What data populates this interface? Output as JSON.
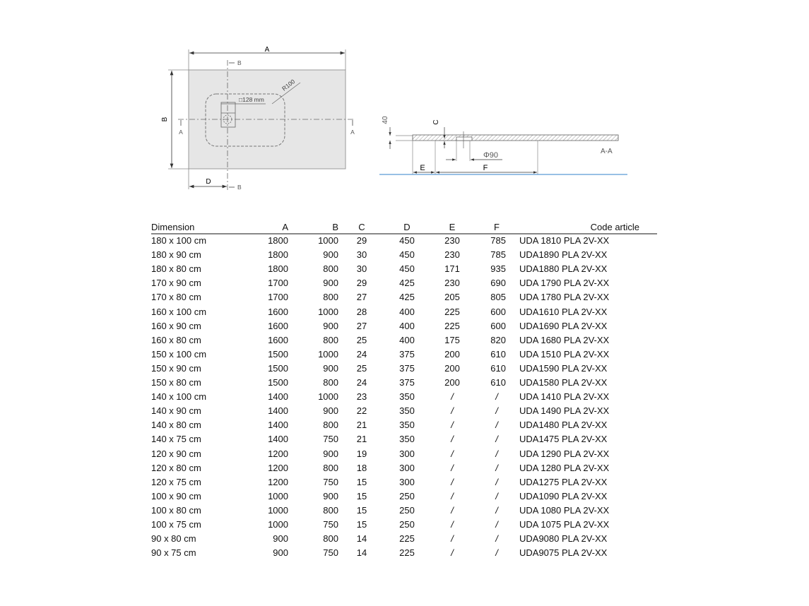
{
  "plan_view": {
    "label_a": "A",
    "label_b": "B",
    "label_d": "D",
    "section_b": "B",
    "section_a": "A",
    "drain_size": "□128 mm",
    "radius": "R100",
    "tray_color": "#e6e6e6"
  },
  "section_view": {
    "label_40": "40",
    "label_c": "C",
    "label_e": "E",
    "label_f": "F",
    "diameter": "Φ90",
    "section_name": "A-A",
    "floor_color": "#5b9bd5"
  },
  "table": {
    "headers": [
      "Dimension",
      "A",
      "B",
      "C",
      "D",
      "E",
      "F",
      "Code article"
    ],
    "rows": [
      [
        "180 x 100 cm",
        "1800",
        "1000",
        "29",
        "450",
        "230",
        "785",
        "UDA 1810 PLA 2V-XX"
      ],
      [
        "180 x 90 cm",
        "1800",
        "900",
        "30",
        "450",
        "230",
        "785",
        "UDA1890 PLA 2V-XX"
      ],
      [
        "180 x 80 cm",
        "1800",
        "800",
        "30",
        "450",
        "171",
        "935",
        "UDA1880 PLA 2V-XX"
      ],
      [
        "170 x 90 cm",
        "1700",
        "900",
        "29",
        "425",
        "230",
        "690",
        "UDA 1790 PLA 2V-XX"
      ],
      [
        "170 x 80 cm",
        "1700",
        "800",
        "27",
        "425",
        "205",
        "805",
        "UDA 1780 PLA 2V-XX"
      ],
      [
        "160 x 100 cm",
        "1600",
        "1000",
        "28",
        "400",
        "225",
        "600",
        "UDA1610 PLA 2V-XX"
      ],
      [
        "160 x 90 cm",
        "1600",
        "900",
        "27",
        "400",
        "225",
        "600",
        "UDA1690 PLA 2V-XX"
      ],
      [
        "160 x 80 cm",
        "1600",
        "800",
        "25",
        "400",
        "175",
        "820",
        "UDA 1680 PLA 2V-XX"
      ],
      [
        "150 x 100 cm",
        "1500",
        "1000",
        "24",
        "375",
        "200",
        "610",
        "UDA 1510 PLA 2V-XX"
      ],
      [
        "150 x 90 cm",
        "1500",
        "900",
        "25",
        "375",
        "200",
        "610",
        "UDA1590 PLA 2V-XX"
      ],
      [
        "150 x 80 cm",
        "1500",
        "800",
        "24",
        "375",
        "200",
        "610",
        "UDA1580 PLA 2V-XX"
      ],
      [
        "140 x 100 cm",
        "1400",
        "1000",
        "23",
        "350",
        "/",
        "/",
        "UDA 1410 PLA 2V-XX"
      ],
      [
        "140 x 90 cm",
        "1400",
        "900",
        "22",
        "350",
        "/",
        "/",
        "UDA 1490 PLA 2V-XX"
      ],
      [
        "140 x 80 cm",
        "1400",
        "800",
        "21",
        "350",
        "/",
        "/",
        "UDA1480 PLA 2V-XX"
      ],
      [
        "140 x 75 cm",
        "1400",
        "750",
        "21",
        "350",
        "/",
        "/",
        "UDA1475 PLA 2V-XX"
      ],
      [
        "120 x 90 cm",
        "1200",
        "900",
        "19",
        "300",
        "/",
        "/",
        "UDA 1290 PLA 2V-XX"
      ],
      [
        "120 x 80 cm",
        "1200",
        "800",
        "18",
        "300",
        "/",
        "/",
        "UDA 1280 PLA 2V-XX"
      ],
      [
        "120 x 75 cm",
        "1200",
        "750",
        "15",
        "300",
        "/",
        "/",
        "UDA1275 PLA 2V-XX"
      ],
      [
        "100 x 90 cm",
        "1000",
        "900",
        "15",
        "250",
        "/",
        "/",
        "UDA1090 PLA 2V-XX"
      ],
      [
        "100 x 80 cm",
        "1000",
        "800",
        "15",
        "250",
        "/",
        "/",
        "UDA 1080 PLA 2V-XX"
      ],
      [
        "100 x 75 cm",
        "1000",
        "750",
        "15",
        "250",
        "/",
        "/",
        "UDA 1075 PLA 2V-XX"
      ],
      [
        "90 x 80 cm",
        "900",
        "800",
        "14",
        "225",
        "/",
        "/",
        "UDA9080 PLA 2V-XX"
      ],
      [
        "90 x 75 cm",
        "900",
        "750",
        "14",
        "225",
        "/",
        "/",
        "UDA9075 PLA 2V-XX"
      ]
    ]
  }
}
